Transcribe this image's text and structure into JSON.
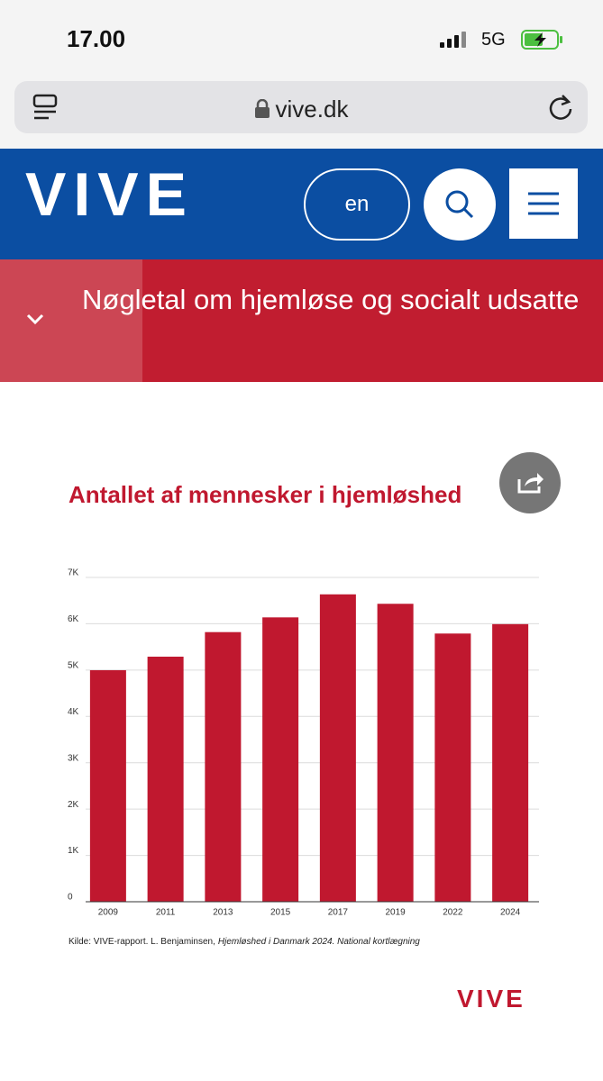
{
  "status_bar": {
    "time": "17.00",
    "network": "5G"
  },
  "browser": {
    "url": "vive.dk"
  },
  "header": {
    "logo": "VIVE",
    "language_button": "en"
  },
  "section": {
    "title": "Nøgletal om hjemløse og socialt udsatte"
  },
  "chart_data": {
    "type": "bar",
    "title": "Antallet af mennesker i hjemløshed",
    "categories": [
      "2009",
      "2011",
      "2013",
      "2015",
      "2017",
      "2019",
      "2022",
      "2024"
    ],
    "values": [
      4998,
      5290,
      5820,
      6138,
      6635,
      6431,
      5789,
      5992
    ],
    "color": "#c0182f",
    "ylim": [
      0,
      7000
    ],
    "yticks": [
      0,
      {
        "value": 1000,
        "label": "1K"
      },
      {
        "value": 2000,
        "label": "2K"
      },
      {
        "value": 3000,
        "label": "3K"
      },
      {
        "value": 4000,
        "label": "4K"
      },
      {
        "value": 5000,
        "label": "5K"
      },
      {
        "value": 6000,
        "label": "6K"
      },
      {
        "value": 7000,
        "label": "7K"
      }
    ],
    "grid": true
  },
  "source": {
    "prefix": "Kilde: VIVE-rapport. L. Benjaminsen,",
    "title": "Hjemløshed i Danmark 2024. National kortlægning"
  },
  "footer": {
    "logo": "VIVE"
  }
}
